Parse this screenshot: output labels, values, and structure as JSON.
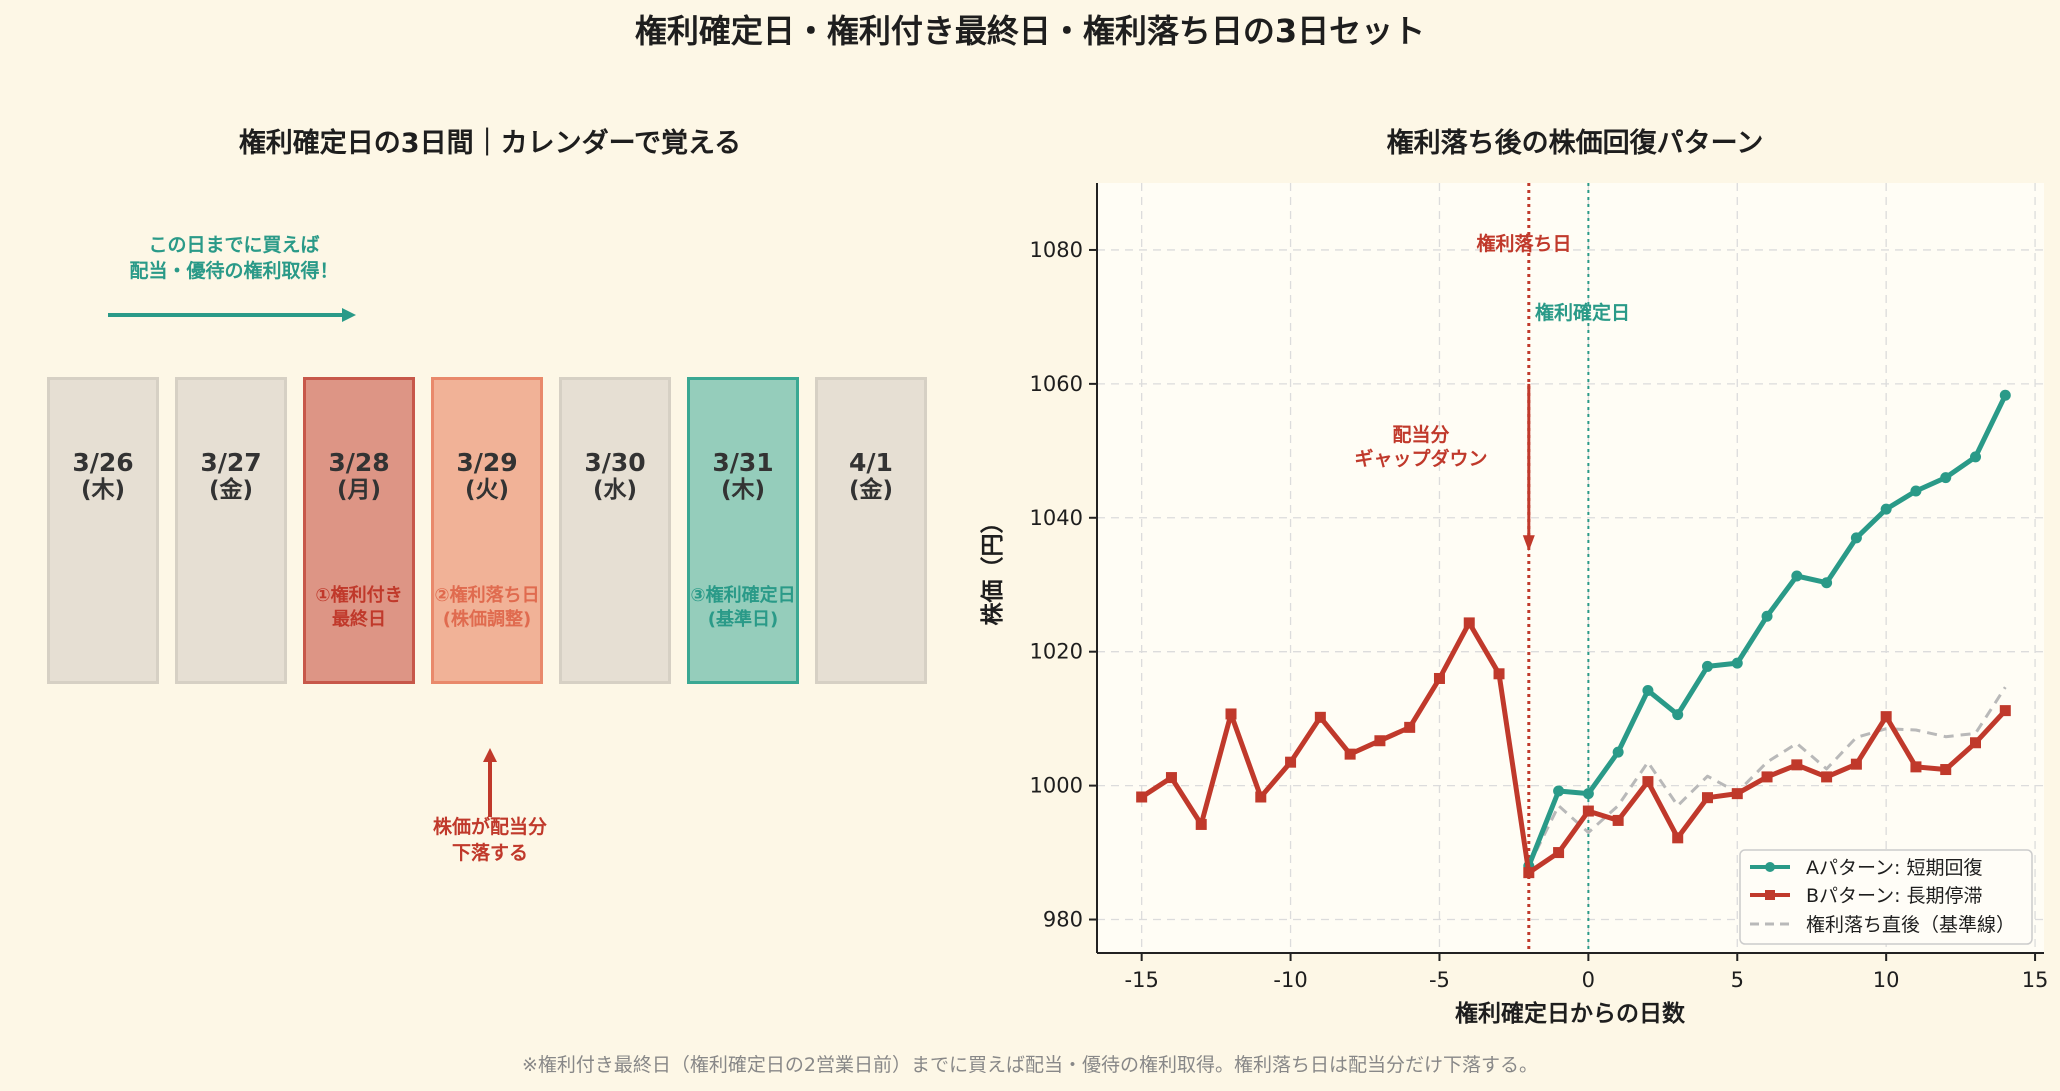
{
  "main_title": "権利確定日・権利付き最終日・権利落ち日の3日セット",
  "footnote": "※権利付き最終日（権利確定日の2営業日前）までに買えば配当・優待の権利取得。権利落ち日は配当分だけ下落する。",
  "calendar": {
    "title": "権利確定日の3日間｜カレンダーで覚える",
    "buy_note_line1": "この日までに買えば",
    "buy_note_line2": "配当・優待の権利取得！",
    "drop_note_line1": "株価が配当分",
    "drop_note_line2": "下落する",
    "days": [
      {
        "date": "3/26",
        "dow": "(木)",
        "note1": "",
        "note2": "",
        "style": "normal"
      },
      {
        "date": "3/27",
        "dow": "(金)",
        "note1": "",
        "note2": "",
        "style": "normal"
      },
      {
        "date": "3/28",
        "dow": "(月)",
        "note1": "①権利付き",
        "note2": "最終日",
        "style": "last-day"
      },
      {
        "date": "3/29",
        "dow": "(火)",
        "note1": "②権利落ち日",
        "note2": "(株価調整)",
        "style": "ex-day"
      },
      {
        "date": "3/30",
        "dow": "(水)",
        "note1": "",
        "note2": "",
        "style": "normal"
      },
      {
        "date": "3/31",
        "dow": "(木)",
        "note1": "③権利確定日",
        "note2": "(基準日)",
        "style": "record-day"
      },
      {
        "date": "4/1",
        "dow": "(金)",
        "note1": "",
        "note2": "",
        "style": "normal"
      }
    ],
    "colors": {
      "normal": "#e6dfd3",
      "last-day": "#dd9585",
      "ex-day": "#f1b297",
      "record-day": "#95cdbb"
    }
  },
  "chart_data": {
    "type": "line",
    "title": "権利落ち後の株価回復パターン",
    "xlabel": "権利確定日からの日数",
    "ylabel": "株価（円）",
    "xlim": [
      -16.5,
      15.3
    ],
    "ylim": [
      975,
      1090
    ],
    "xticks": [
      -15,
      -10,
      -5,
      0,
      5,
      10,
      15
    ],
    "xtick_labels": [
      "-15",
      "-10",
      "-5",
      "0",
      "5",
      "10",
      "15"
    ],
    "yticks": [
      980,
      1000,
      1020,
      1040,
      1060,
      1080
    ],
    "ytick_labels": [
      "980",
      "1000",
      "1020",
      "1040",
      "1060",
      "1080"
    ],
    "grid": true,
    "legend_position": "bottom-right",
    "x": [
      -15,
      -14,
      -13,
      -12,
      -11,
      -10,
      -9,
      -8,
      -7,
      -6,
      -5,
      -4,
      -3,
      -2,
      -1,
      0,
      1,
      2,
      3,
      4,
      5,
      6,
      7,
      8,
      9,
      10,
      11,
      12,
      13,
      14
    ],
    "series": [
      {
        "name": "Aパターン: 短期回復",
        "color": "#2a9a88",
        "style": "solid",
        "marker": "circle",
        "x": [
          -2,
          -1,
          0,
          1,
          2,
          3,
          4,
          5,
          6,
          7,
          8,
          9,
          10,
          11,
          12,
          13,
          14
        ],
        "values": [
          988,
          999.2,
          998.8,
          1005,
          1014.2,
          1010.6,
          1017.8,
          1018.3,
          1025.3,
          1031.3,
          1030.3,
          1037,
          1041.3,
          1044,
          1046,
          1049.1,
          1058.3
        ]
      },
      {
        "name": "Bパターン: 長期停滞",
        "color": "#c0392b",
        "style": "solid",
        "marker": "square",
        "x": [
          -15,
          -14,
          -13,
          -12,
          -11,
          -10,
          -9,
          -8,
          -7,
          -6,
          -5,
          -4,
          -3,
          -2,
          -1,
          0,
          1,
          2,
          3,
          4,
          5,
          6,
          7,
          8,
          9,
          10,
          11,
          12,
          13,
          14
        ],
        "values": [
          998.3,
          1001.2,
          994.2,
          1010.7,
          998.3,
          1003.5,
          1010.2,
          1004.7,
          1006.7,
          1008.7,
          1016,
          1024.3,
          1016.7,
          987,
          990,
          996.2,
          994.8,
          1000.6,
          992.2,
          998.2,
          998.8,
          1001.3,
          1003.1,
          1001.3,
          1003.2,
          1010.3,
          1002.8,
          1002.4,
          1006.4,
          1011.2
        ]
      },
      {
        "name": "権利落ち直後（基準線）",
        "color": "#b9b9b9",
        "style": "dashed",
        "marker": "none",
        "x": [
          -2,
          -1,
          0,
          1,
          2,
          3,
          4,
          5,
          6,
          7,
          8,
          9,
          10,
          11,
          12,
          13,
          14
        ],
        "values": [
          988,
          997,
          993,
          997,
          1003.5,
          997,
          1001.4,
          999,
          1003.5,
          1006.3,
          1002.5,
          1007.2,
          1008.5,
          1008.3,
          1007.3,
          1007.8,
          1014.7
        ]
      }
    ],
    "vlines": [
      {
        "x": -2,
        "label": "権利落ち日",
        "color": "#c0392b",
        "style": "dotted"
      },
      {
        "x": 0,
        "label": "権利確定日",
        "color": "#2a9a88",
        "style": "dotted"
      }
    ],
    "annotation": {
      "line1": "配当分",
      "line2": "ギャップダウン",
      "arrow_from_y": 1060,
      "arrow_to_y": 1035,
      "x": -2,
      "color": "#c0392b"
    }
  }
}
